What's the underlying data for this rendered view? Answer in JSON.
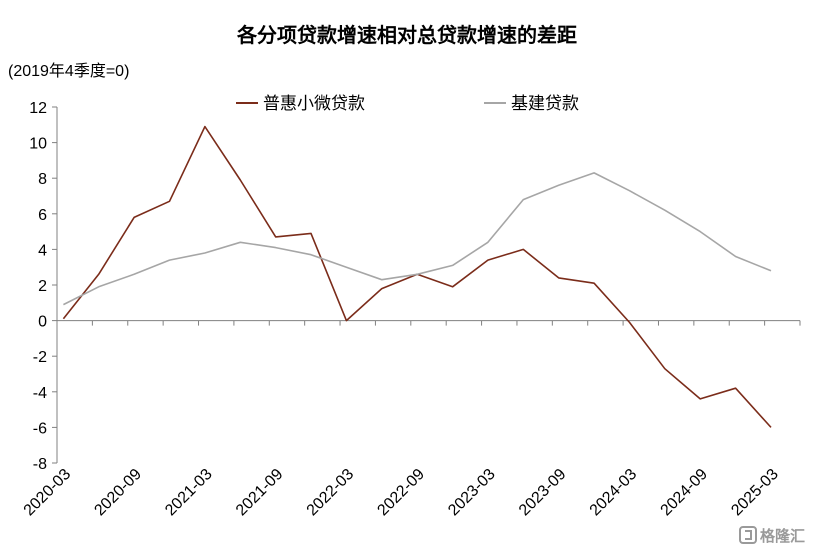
{
  "chart_data": {
    "type": "line",
    "title": "各分项贷款增速相对总贷款增速的差距",
    "subtitle": "(2019年4季度=0)",
    "xlabel": "",
    "ylabel": "",
    "ylim": [
      -8,
      12
    ],
    "yticks": [
      "12",
      "10",
      "8",
      "6",
      "4",
      "2",
      "0",
      "-2",
      "-4",
      "-6",
      "-8"
    ],
    "x": [
      "2020-03",
      "2020-06",
      "2020-09",
      "2020-12",
      "2021-03",
      "2021-06",
      "2021-09",
      "2021-12",
      "2022-03",
      "2022-06",
      "2022-09",
      "2022-12",
      "2023-03",
      "2023-06",
      "2023-09",
      "2023-12",
      "2024-03",
      "2024-06",
      "2024-09",
      "2024-12",
      "2025-03"
    ],
    "xtick_labels": [
      "2020-03",
      "2020-09",
      "2021-03",
      "2021-09",
      "2022-03",
      "2022-09",
      "2023-03",
      "2023-09",
      "2024-03",
      "2024-09",
      "2025-03"
    ],
    "grid": false,
    "legend_position": "top",
    "series": [
      {
        "name": "普惠小微贷款",
        "color": "#7b2c1a",
        "values": [
          0.1,
          2.6,
          5.8,
          6.7,
          10.9,
          7.9,
          4.7,
          4.9,
          0.0,
          1.8,
          2.6,
          1.9,
          3.4,
          4.0,
          2.4,
          2.1,
          -0.1,
          -2.7,
          -4.4,
          -3.8,
          -6.0
        ]
      },
      {
        "name": "基建贷款",
        "color": "#a6a6a6",
        "values": [
          0.9,
          1.9,
          2.6,
          3.4,
          3.8,
          4.4,
          4.1,
          3.7,
          3.0,
          2.3,
          2.6,
          3.1,
          4.4,
          6.8,
          7.6,
          8.3,
          7.3,
          6.2,
          5.0,
          3.6,
          2.8
        ]
      }
    ]
  },
  "watermark": {
    "text": "格隆汇",
    "icon": "logo-icon"
  }
}
